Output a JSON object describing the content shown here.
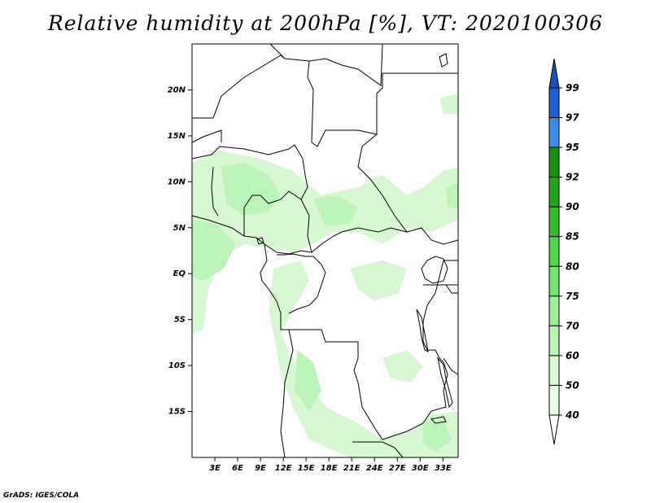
{
  "title": "Relative humidity at 200hPa [%], VT: 2020100306",
  "credit": "GrADS: IGES/COLA",
  "map": {
    "lon_range": [
      0,
      35
    ],
    "lat_range": [
      -20,
      25
    ],
    "lat_ticks": [
      {
        "label": "20N",
        "value": 20
      },
      {
        "label": "15N",
        "value": 15
      },
      {
        "label": "10N",
        "value": 10
      },
      {
        "label": "5N",
        "value": 5
      },
      {
        "label": "EQ",
        "value": 0
      },
      {
        "label": "5S",
        "value": -5
      },
      {
        "label": "10S",
        "value": -10
      },
      {
        "label": "15S",
        "value": -15
      }
    ],
    "lon_ticks": [
      {
        "label": "3E",
        "value": 3
      },
      {
        "label": "6E",
        "value": 6
      },
      {
        "label": "9E",
        "value": 9
      },
      {
        "label": "12E",
        "value": 12
      },
      {
        "label": "15E",
        "value": 15
      },
      {
        "label": "18E",
        "value": 18
      },
      {
        "label": "21E",
        "value": 21
      },
      {
        "label": "24E",
        "value": 24
      },
      {
        "label": "27E",
        "value": 27
      },
      {
        "label": "30E",
        "value": 30
      },
      {
        "label": "33E",
        "value": 33
      }
    ]
  },
  "colorbar": {
    "levels": [
      {
        "label": "99",
        "color": "#1e5fd0"
      },
      {
        "label": "97",
        "color": "#3c8be6"
      },
      {
        "label": "95",
        "color": "#15900f"
      },
      {
        "label": "92",
        "color": "#22a51c"
      },
      {
        "label": "90",
        "color": "#33bb2e"
      },
      {
        "label": "85",
        "color": "#4cd84a"
      },
      {
        "label": "80",
        "color": "#74e371"
      },
      {
        "label": "75",
        "color": "#9cee99"
      },
      {
        "label": "70",
        "color": "#bcf3b8"
      },
      {
        "label": "60",
        "color": "#d8f8d4"
      },
      {
        "label": "50",
        "color": "#ebfce8"
      },
      {
        "label": "40",
        "color": "#ffffff"
      }
    ],
    "top_color": "#1752b6",
    "bottom_color": "#ffffff"
  }
}
